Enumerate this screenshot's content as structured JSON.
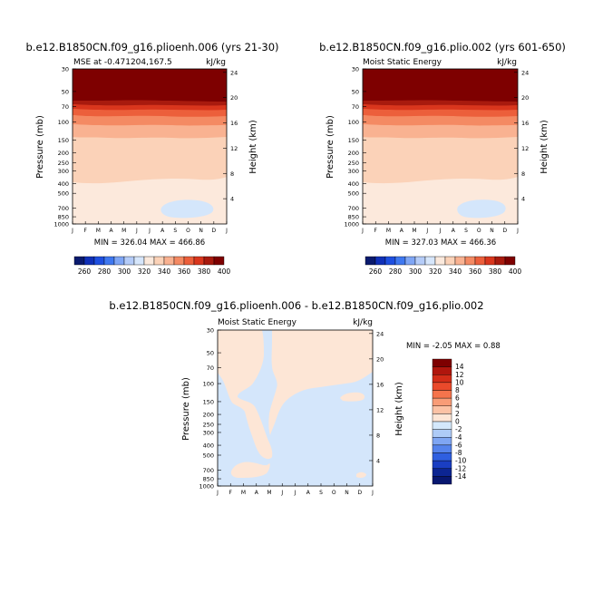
{
  "chart_data": [
    {
      "type": "heatmap",
      "case_title": "b.e12.B1850CN.f09_g16.plioenh.006 (yrs 21-30)",
      "left_title": "MSE at -0.471204,167.5",
      "units": "kJ/kg",
      "ylabel": "Pressure (mb)",
      "ylabel_right": "Height (km)",
      "x_ticks": [
        "J",
        "F",
        "M",
        "A",
        "M",
        "J",
        "J",
        "A",
        "S",
        "O",
        "N",
        "D",
        "J"
      ],
      "y_ticks": [
        30,
        50,
        70,
        100,
        150,
        200,
        250,
        300,
        400,
        500,
        700,
        850,
        1000
      ],
      "y_ticks_right": [
        24,
        20,
        16,
        12,
        8,
        4
      ],
      "stats_text": "MIN = 326.04  MAX = 466.86",
      "min": 326.04,
      "max": 466.86
    },
    {
      "type": "heatmap",
      "case_title": "b.e12.B1850CN.f09_g16.plio.002 (yrs 601-650)",
      "left_title": "Moist Static Energy",
      "units": "kJ/kg",
      "ylabel": "Pressure (mb)",
      "ylabel_right": "Height (km)",
      "x_ticks": [
        "J",
        "F",
        "M",
        "A",
        "M",
        "J",
        "J",
        "A",
        "S",
        "O",
        "N",
        "D",
        "J"
      ],
      "y_ticks": [
        30,
        50,
        70,
        100,
        150,
        200,
        250,
        300,
        400,
        500,
        700,
        850,
        1000
      ],
      "y_ticks_right": [
        24,
        20,
        16,
        12,
        8,
        4
      ],
      "stats_text": "MIN = 327.03  MAX = 466.36",
      "min": 327.03,
      "max": 466.36
    },
    {
      "type": "heatmap",
      "case_title": "b.e12.B1850CN.f09_g16.plioenh.006 - b.e12.B1850CN.f09_g16.plio.002",
      "left_title": "Moist Static Energy",
      "units": "kJ/kg",
      "ylabel": "Pressure (mb)",
      "ylabel_right": "Height (km)",
      "x_ticks": [
        "J",
        "F",
        "M",
        "A",
        "M",
        "J",
        "J",
        "A",
        "S",
        "O",
        "N",
        "D",
        "J"
      ],
      "y_ticks": [
        30,
        50,
        70,
        100,
        150,
        200,
        250,
        300,
        400,
        500,
        700,
        850,
        1000
      ],
      "y_ticks_right": [
        24,
        20,
        16,
        12,
        8,
        4
      ],
      "stats_text": "MIN =    -2.05  MAX =    0.88",
      "min": -2.05,
      "max": 0.88
    }
  ],
  "top_colorbar": {
    "labels": [
      "260",
      "280",
      "300",
      "320",
      "340",
      "360",
      "380",
      "400"
    ],
    "colors": [
      "#0a1a6e",
      "#1030b8",
      "#1e4fe0",
      "#3f78f0",
      "#7fa6f5",
      "#b5ccf8",
      "#d6e6fb",
      "#fbe9dc",
      "#fbd2b8",
      "#f9b291",
      "#f48a63",
      "#ec5f3b",
      "#d9361d",
      "#a81a0e",
      "#7e0000"
    ]
  },
  "diff_colorbar": {
    "labels": [
      "14",
      "12",
      "10",
      "8",
      "6",
      "4",
      "2",
      "0",
      "-2",
      "-4",
      "-6",
      "-8",
      "-10",
      "-12",
      "-14"
    ],
    "colors": [
      "#7e0000",
      "#b0160d",
      "#d32d18",
      "#ea4a2b",
      "#f5744c",
      "#f89c77",
      "#fbc2a5",
      "#fde6d6",
      "#d4e8fb",
      "#aecbf7",
      "#7fa6f3",
      "#5583ec",
      "#2f5fe0",
      "#1a3ec2",
      "#0c2592",
      "#081770"
    ]
  }
}
